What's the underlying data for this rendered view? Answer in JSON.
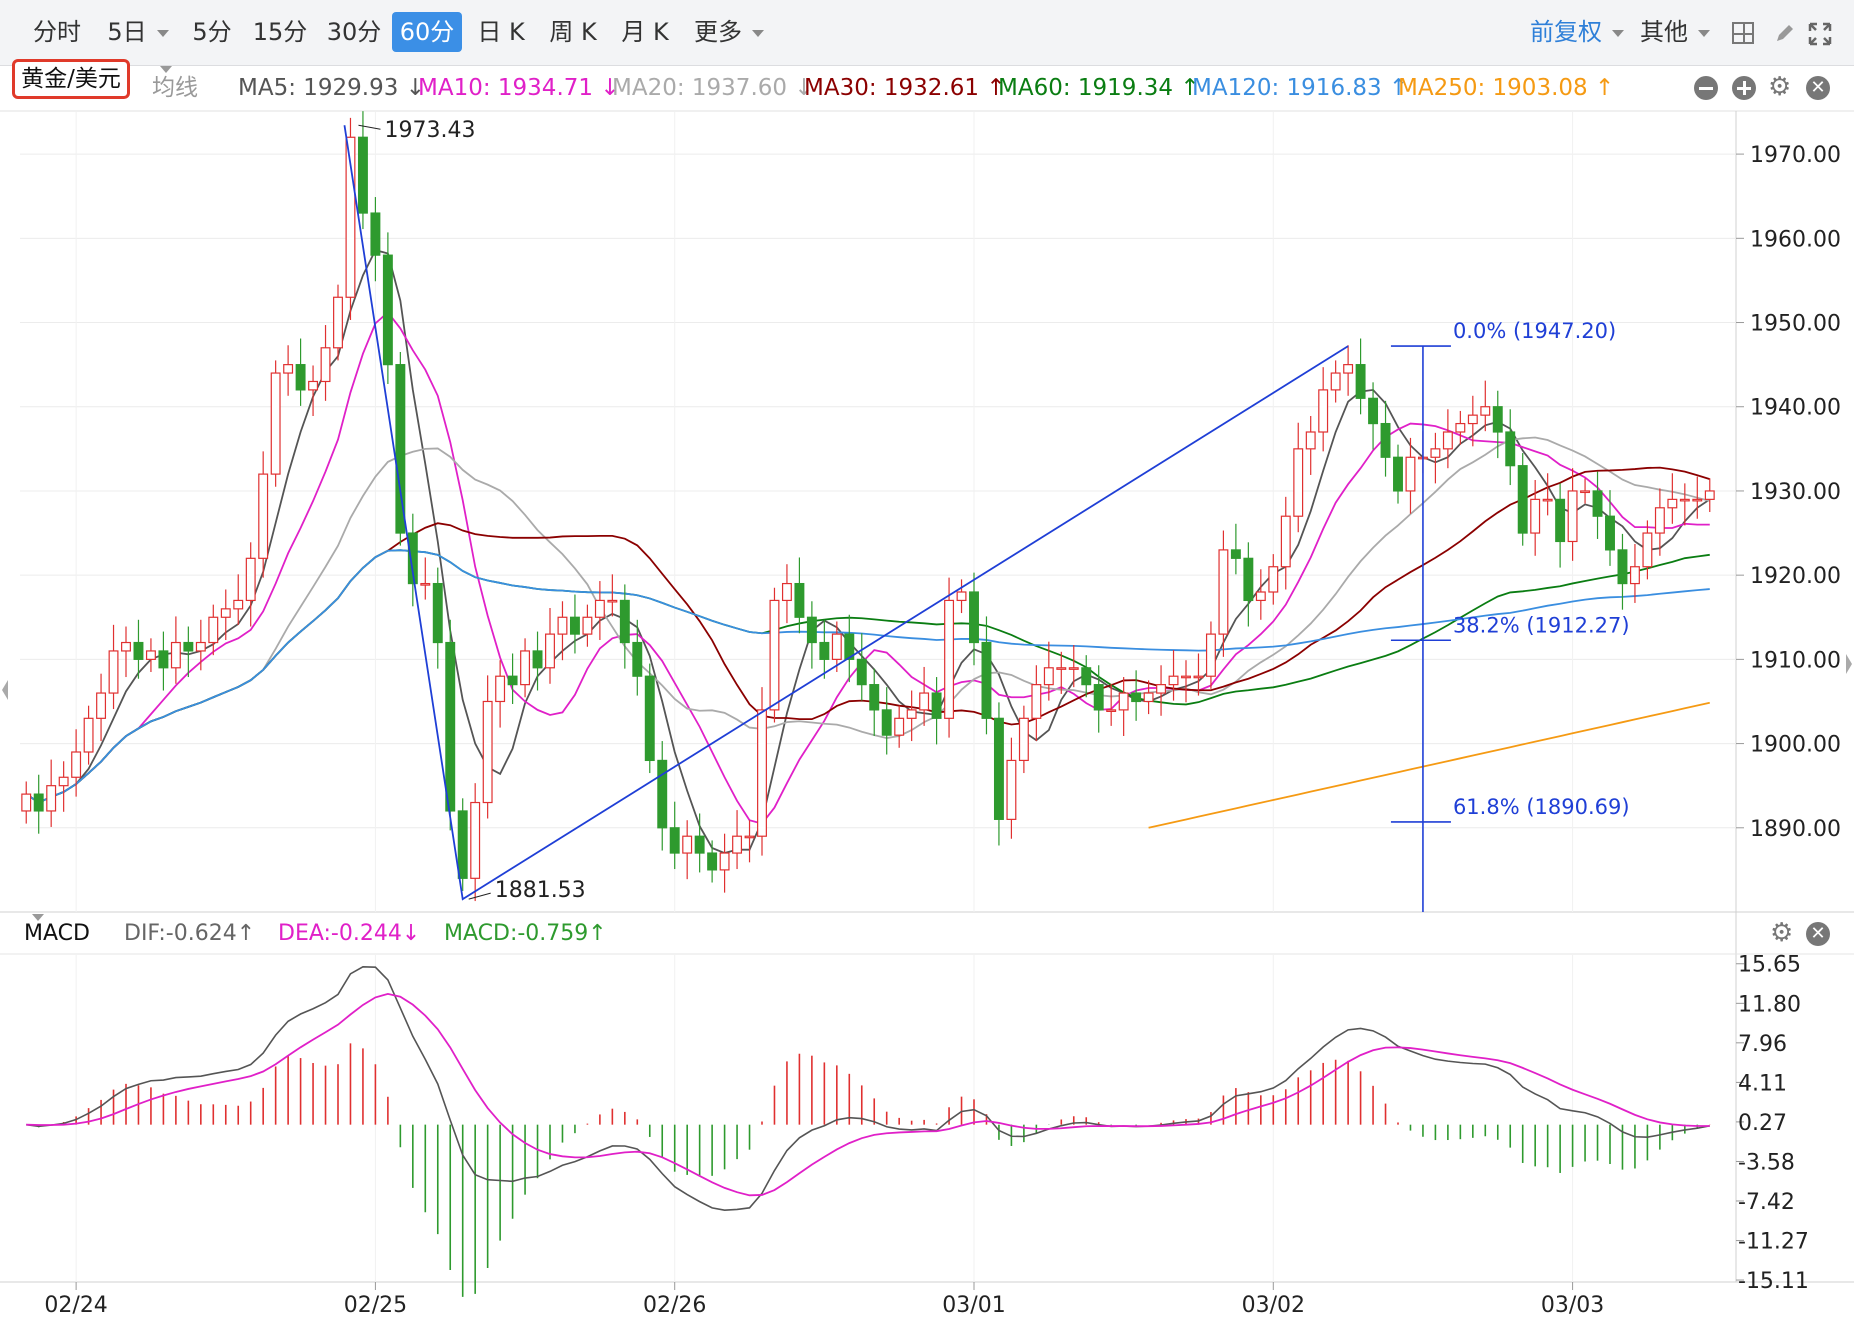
{
  "toolbar": {
    "timeframes": [
      "分时",
      "5日",
      "5分",
      "15分",
      "30分",
      "60分",
      "日 K",
      "周 K",
      "月 K",
      "更多"
    ],
    "active": "60分",
    "adjust": "前复权",
    "other": "其他"
  },
  "symbol": "黄金/美元",
  "ma_bar": {
    "label": "均线",
    "items": [
      {
        "text": "MA5: 1929.93 ↓",
        "color": "#555555"
      },
      {
        "text": "MA10: 1934.71 ↓",
        "color": "#e020c8"
      },
      {
        "text": "MA20: 1937.60 ↓",
        "color": "#aaaaaa"
      },
      {
        "text": "MA30: 1932.61 ↑",
        "color": "#8b0000"
      },
      {
        "text": "MA60: 1919.34 ↑",
        "color": "#0a7d12"
      },
      {
        "text": "MA120: 1916.83 ↑",
        "color": "#3a8ee0"
      },
      {
        "text": "MA250: 1903.08 ↑",
        "color": "#f59a13"
      }
    ]
  },
  "macd_bar": {
    "label": "MACD",
    "dif": "DIF:-0.624↑",
    "dea": "DEA:-0.244↓",
    "macd": "MACD:-0.759↑"
  },
  "colors": {
    "up": "#e03030",
    "down": "#2e9a2e",
    "ma5": "#555555",
    "ma10": "#e020c8",
    "ma20": "#aaaaaa",
    "ma30": "#8b0000",
    "ma60": "#0a7d12",
    "ma120": "#3a8ee0",
    "ma250": "#f59a13",
    "fib": "#1f3fd6",
    "accent": "#3b8fe6"
  },
  "chart_data": {
    "type": "candlestick",
    "x_labels": [
      "02/24",
      "02/25",
      "02/26",
      "03/01",
      "03/02",
      "03/03"
    ],
    "price_ticks": [
      "1970.00",
      "1960.00",
      "1950.00",
      "1940.00",
      "1930.00",
      "1920.00",
      "1910.00",
      "1900.00",
      "1890.00"
    ],
    "price_range": [
      1880,
      1975
    ],
    "macd_ticks": [
      "15.65",
      "11.80",
      "7.96",
      "4.11",
      "0.27",
      "-3.58",
      "-7.42",
      "-11.27",
      "-15.11"
    ],
    "macd_range": [
      -15.3,
      16.5
    ],
    "annotations": {
      "high": "1973.43",
      "low": "1881.53"
    },
    "fibonacci": [
      {
        "label": "0.0% (1947.20)",
        "price": 1947.2
      },
      {
        "label": "38.2% (1912.27)",
        "price": 1912.27
      },
      {
        "label": "61.8% (1890.69)",
        "price": 1890.69
      }
    ],
    "close": [
      1894,
      1892,
      1895,
      1896,
      1899,
      1903,
      1906,
      1911,
      1912,
      1910,
      1911,
      1909,
      1912,
      1911,
      1912,
      1915,
      1916,
      1917,
      1922,
      1932,
      1944,
      1945,
      1942,
      1943,
      1947,
      1953,
      1972,
      1963,
      1958,
      1945,
      1925,
      1919,
      1919,
      1912,
      1892,
      1884,
      1893,
      1905,
      1908,
      1907,
      1911,
      1909,
      1913,
      1915,
      1913,
      1915,
      1917,
      1917,
      1912,
      1908,
      1898,
      1890,
      1887,
      1889,
      1887,
      1885,
      1887,
      1889,
      1889,
      1904,
      1917,
      1919,
      1915,
      1912,
      1910,
      1913,
      1910,
      1907,
      1904,
      1901,
      1903,
      1904,
      1906,
      1903,
      1917,
      1918,
      1912,
      1903,
      1891,
      1898,
      1903,
      1907,
      1909,
      1909,
      1909,
      1907,
      1904,
      1904,
      1906,
      1905,
      1906,
      1907,
      1908,
      1908,
      1908,
      1913,
      1923,
      1922,
      1917,
      1918,
      1921,
      1927,
      1935,
      1937,
      1942,
      1944,
      1945,
      1941,
      1938,
      1934,
      1930,
      1934,
      1934,
      1935,
      1937,
      1938,
      1939,
      1940,
      1937,
      1933,
      1925,
      1929,
      1929,
      1924,
      1930,
      1930,
      1927,
      1923,
      1919,
      1921,
      1925,
      1928,
      1929,
      1929,
      1929,
      1930
    ]
  }
}
